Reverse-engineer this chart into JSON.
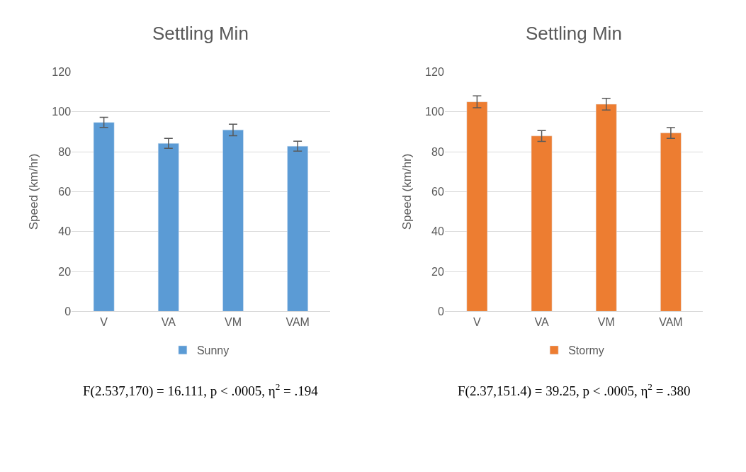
{
  "chart_data": [
    {
      "type": "bar",
      "title": "Settling Min",
      "ylabel": "Speed (km/hr)",
      "categories": [
        "V",
        "VA",
        "VM",
        "VAM"
      ],
      "series": [
        {
          "name": "Sunny",
          "color": "#5b9bd5",
          "values": [
            94.7,
            84.2,
            90.9,
            82.8
          ],
          "errors": [
            2.5,
            2.5,
            2.9,
            2.5
          ]
        }
      ],
      "ylim": [
        0,
        120
      ],
      "yticks": [
        0,
        20,
        40,
        60,
        80,
        100,
        120
      ],
      "grid": "y",
      "legend": "bottom",
      "annotations": [
        "F(2.537,170) = 16.111, p < .0005, η$^{2}$ = .194"
      ]
    },
    {
      "type": "bar",
      "title": "Settling Min",
      "ylabel": "Speed (km/hr)",
      "categories": [
        "V",
        "VA",
        "VM",
        "VAM"
      ],
      "series": [
        {
          "name": "Stormy",
          "color": "#ed7d31",
          "values": [
            105.0,
            87.9,
            103.8,
            89.4
          ],
          "errors": [
            3.0,
            2.7,
            2.9,
            2.7
          ]
        }
      ],
      "ylim": [
        0,
        120
      ],
      "yticks": [
        0,
        20,
        40,
        60,
        80,
        100,
        120
      ],
      "grid": "y",
      "legend": "bottom",
      "annotations": [
        "F(2.37,151.4) = 39.25, p < .0005, η$^{2}$ = .380"
      ]
    }
  ]
}
